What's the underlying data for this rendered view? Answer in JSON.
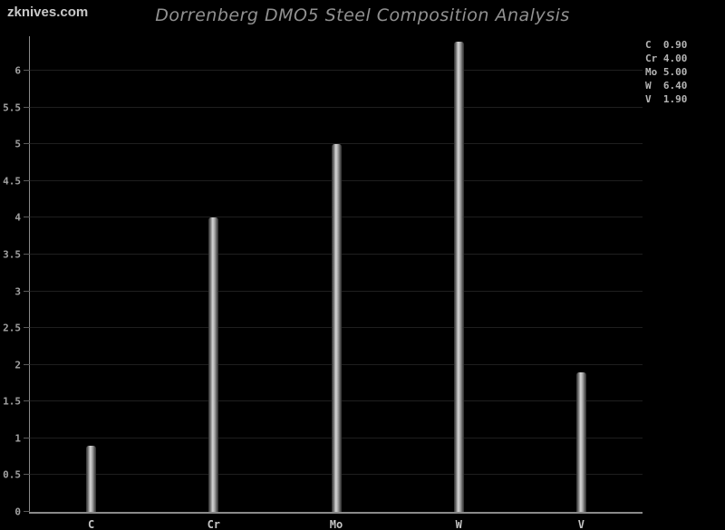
{
  "watermark": "zknives.com",
  "header": {
    "title": "Dorrenberg DMO5 Steel Composition Analysis"
  },
  "chart_data": {
    "type": "bar",
    "title": "Dorrenberg DMO5 Steel Composition Analysis",
    "categories": [
      "C",
      "Cr",
      "Mo",
      "W",
      "V"
    ],
    "values": [
      0.9,
      4.0,
      5.0,
      6.4,
      1.9
    ],
    "xlabel": "",
    "ylabel": "",
    "ylim": [
      0,
      6.47
    ],
    "yticks": [
      0,
      0.5,
      1,
      1.5,
      2,
      2.5,
      3,
      3.5,
      4,
      4.5,
      5,
      5.5,
      6
    ],
    "grid": "horizontal-only",
    "legend_position": "top-right",
    "legend": [
      {
        "element": "C",
        "value": "0.90"
      },
      {
        "element": "Cr",
        "value": "4.00"
      },
      {
        "element": "Mo",
        "value": "5.00"
      },
      {
        "element": "W",
        "value": "6.40"
      },
      {
        "element": "V",
        "value": "1.90"
      }
    ],
    "colors": {
      "background": "#000000",
      "axis": "#8a8a8a",
      "gridline": "#1f1f1f",
      "bar_light": "#d6d6d6",
      "bar_dark": "#2e2e2e",
      "title_text": "#919191",
      "axis_text": "#a2a2a2",
      "category_text": "#c4c4c4",
      "legend_text": "#b4b4b4",
      "watermark_text": "#c8c8c8"
    }
  }
}
